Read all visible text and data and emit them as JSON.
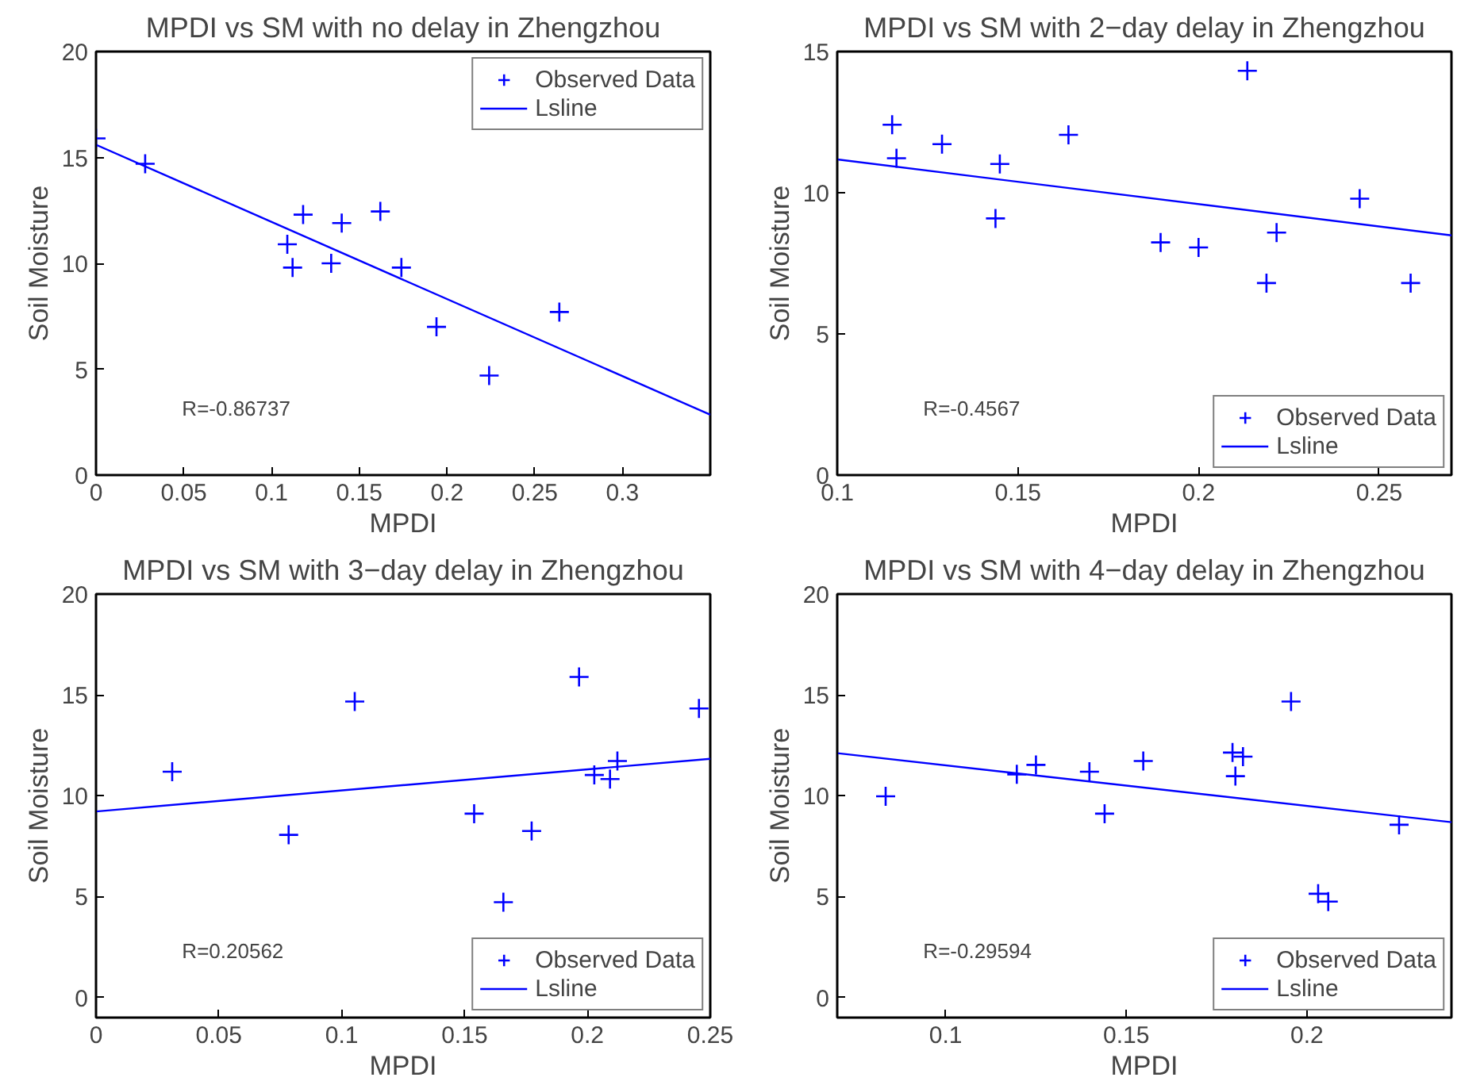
{
  "chart_data": [
    {
      "type": "scatter",
      "title": "MPDI vs SM with no delay in Zhengzhou",
      "xlabel": "MPDI",
      "ylabel": "Soil Moisture",
      "xlim": [
        0,
        0.35
      ],
      "xticks": [
        0,
        0.05,
        0.1,
        0.15,
        0.2,
        0.25,
        0.3
      ],
      "ylim": [
        0,
        20
      ],
      "yticks": [
        0,
        5,
        10,
        15,
        20
      ],
      "legend": "top right",
      "grid": false,
      "annotations": [
        "R=-0.86737"
      ],
      "series": [
        {
          "name": "Observed Data",
          "marker": "cross",
          "color": "#0000ff",
          "x": [
            0,
            0.028,
            0.109,
            0.112,
            0.118,
            0.134,
            0.14,
            0.162,
            0.174,
            0.194,
            0.224,
            0.264
          ],
          "values": [
            15.9,
            14.7,
            10.9,
            9.8,
            12.3,
            10.0,
            11.9,
            12.45,
            9.8,
            7.0,
            4.7,
            7.7
          ]
        },
        {
          "name": "Lsline",
          "type": "line",
          "color": "#0000ff",
          "x": [
            0,
            0.35
          ],
          "values": [
            15.6,
            2.85
          ]
        }
      ]
    },
    {
      "type": "scatter",
      "title": "MPDI vs SM with 2−day delay in Zhengzhou",
      "xlabel": "MPDI",
      "ylabel": "Soil Moisture",
      "xlim": [
        0.1,
        0.27
      ],
      "xticks": [
        0.1,
        0.15,
        0.2,
        0.25
      ],
      "ylim": [
        0,
        15
      ],
      "yticks": [
        0,
        5,
        10,
        15
      ],
      "legend": "bottom right",
      "grid": false,
      "annotations": [
        "R=-0.4567"
      ],
      "series": [
        {
          "name": "Observed Data",
          "marker": "cross",
          "color": "#0000ff",
          "x": [
            0.1152,
            0.1164,
            0.129,
            0.1438,
            0.145,
            0.164,
            0.1895,
            0.2,
            0.2135,
            0.2188,
            0.2216,
            0.2446,
            0.2587
          ],
          "values": [
            12.41,
            11.22,
            11.72,
            9.09,
            11.02,
            12.05,
            8.24,
            8.06,
            14.32,
            6.8,
            8.59,
            9.79,
            6.8
          ]
        },
        {
          "name": "Lsline",
          "type": "line",
          "color": "#0000ff",
          "x": [
            0.1,
            0.27
          ],
          "values": [
            11.18,
            8.49
          ]
        }
      ]
    },
    {
      "type": "scatter",
      "title": "MPDI vs SM with 3−day delay in Zhengzhou",
      "xlabel": "MPDI",
      "ylabel": "Soil Moisture",
      "xlim": [
        0,
        0.25
      ],
      "xticks": [
        0,
        0.05,
        0.1,
        0.15,
        0.2,
        0.25
      ],
      "ylim": [
        -1,
        20
      ],
      "yticks": [
        0,
        5,
        10,
        15,
        20
      ],
      "legend": "bottom right",
      "grid": false,
      "annotations": [
        "R=0.20562"
      ],
      "series": [
        {
          "name": "Observed Data",
          "marker": "cross",
          "color": "#0000ff",
          "x": [
            0.031,
            0.0784,
            0.1053,
            0.1539,
            0.1658,
            0.1773,
            0.1966,
            0.2028,
            0.2092,
            0.2122,
            0.2454
          ],
          "values": [
            11.19,
            8.06,
            14.67,
            9.11,
            4.72,
            8.25,
            15.89,
            11.03,
            10.83,
            11.72,
            14.33
          ]
        },
        {
          "name": "Lsline",
          "type": "line",
          "color": "#0000ff",
          "x": [
            0,
            0.25
          ],
          "values": [
            9.22,
            11.83
          ]
        }
      ]
    },
    {
      "type": "scatter",
      "title": "MPDI vs SM with 4−day delay in Zhengzhou",
      "xlabel": "MPDI",
      "ylabel": "Soil Moisture",
      "xlim": [
        0.07,
        0.24
      ],
      "xticks": [
        0.1,
        0.15,
        0.2
      ],
      "ylim": [
        -1,
        20
      ],
      "yticks": [
        0,
        5,
        10,
        15,
        20
      ],
      "legend": "bottom right",
      "grid": false,
      "annotations": [
        "R=-0.29594"
      ],
      "series": [
        {
          "name": "Observed Data",
          "marker": "cross",
          "color": "#0000ff",
          "x": [
            0.0834,
            0.1197,
            0.125,
            0.1398,
            0.144,
            0.1547,
            0.1794,
            0.1802,
            0.1823,
            0.1956,
            0.2031,
            0.2059,
            0.2255
          ],
          "values": [
            9.97,
            11.06,
            11.53,
            11.19,
            9.11,
            11.72,
            12.14,
            10.97,
            11.94,
            14.67,
            5.14,
            4.75,
            8.56
          ]
        },
        {
          "name": "Lsline",
          "type": "line",
          "color": "#0000ff",
          "x": [
            0.07,
            0.24
          ],
          "values": [
            12.11,
            8.69
          ]
        }
      ]
    }
  ]
}
